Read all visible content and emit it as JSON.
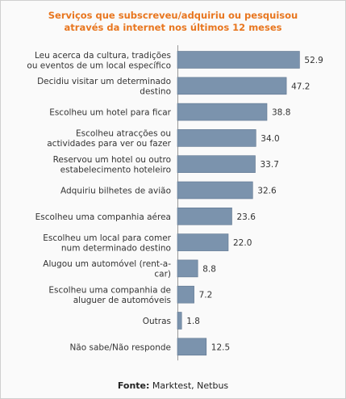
{
  "chart_data": {
    "type": "bar",
    "orientation": "horizontal",
    "title_line1": "Serviços que subscreveu/adquiriu ou pesquisou",
    "title_line2": "através da internet nos últimos 12 meses",
    "categories": [
      [
        "Leu acerca da cultura, tradições",
        "ou eventos de um local específico"
      ],
      [
        "Decidiu visitar um determinado",
        "destino"
      ],
      [
        "Escolheu um hotel para ficar"
      ],
      [
        "Escolheu atracções ou",
        "actividades para ver ou fazer"
      ],
      [
        "Reservou um hotel ou outro",
        "estabelecimento hoteleiro"
      ],
      [
        "Adquiriu bilhetes de avião"
      ],
      [
        "Escolheu uma companhia aérea"
      ],
      [
        "Escolheu um local para comer",
        "num determinado destino"
      ],
      [
        "Alugou um automóvel (rent-a-",
        "car)"
      ],
      [
        "Escolheu uma companhia de",
        "aluguer de automóveis"
      ],
      [
        "Outras"
      ],
      [
        "Não sabe/Não responde"
      ]
    ],
    "values": [
      52.9,
      47.2,
      38.8,
      34.0,
      33.7,
      32.6,
      23.6,
      22.0,
      8.8,
      7.2,
      1.8,
      12.5
    ],
    "value_labels": [
      "52.9",
      "47.2",
      "38.8",
      "34.0",
      "33.7",
      "32.6",
      "23.6",
      "22.0",
      "8.8",
      "7.2",
      "1.8",
      "12.5"
    ],
    "xlim": [
      0,
      58
    ],
    "grid": false,
    "colors": {
      "bar": "#7b93ad",
      "bar_edge": "#5f7690",
      "axis": "#999999",
      "title": "#e8761f"
    }
  },
  "source": {
    "label": "Fonte:",
    "text": " Marktest, Netbus"
  }
}
